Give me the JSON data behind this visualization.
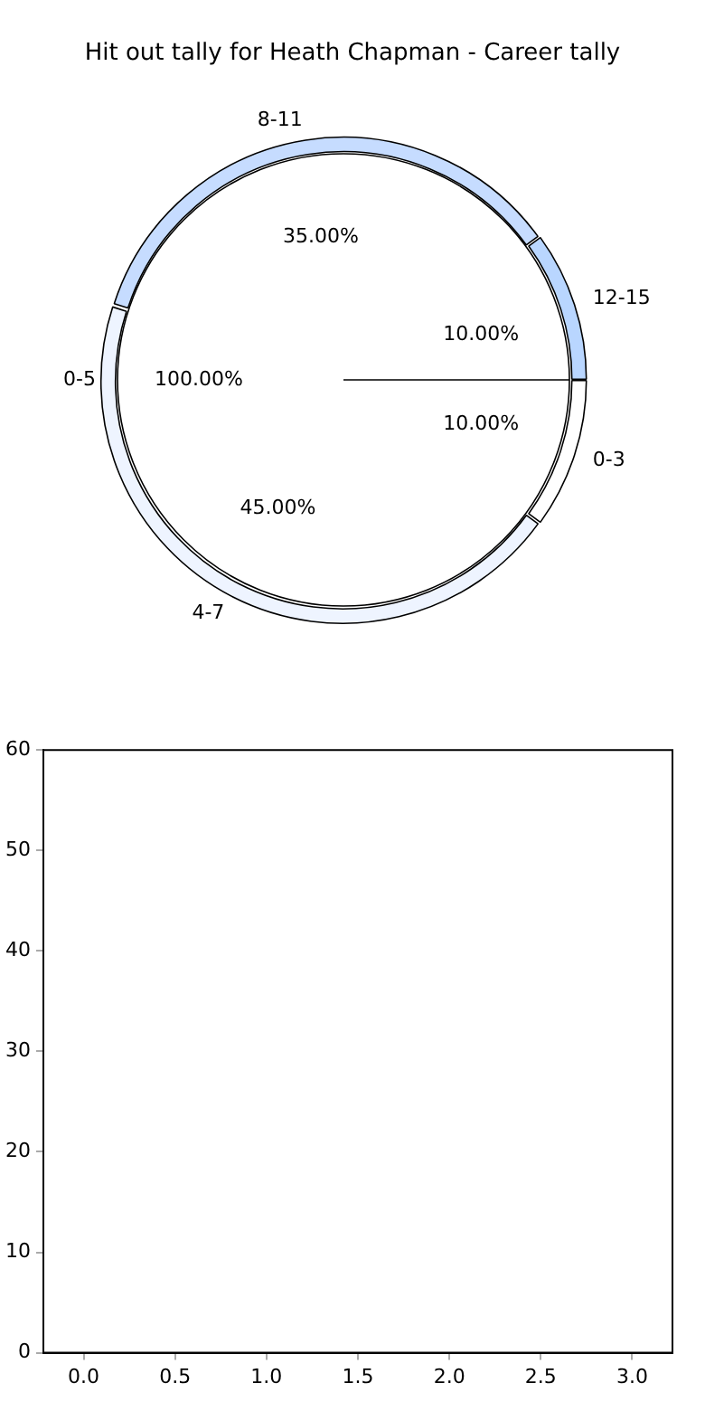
{
  "chart_data": [
    {
      "type": "pie",
      "title": "Hit out tally for Heath Chapman - Career tally",
      "categories": [
        "0-5"
      ],
      "values": [
        100
      ],
      "colors": [
        "#ffffff"
      ],
      "value_labels": [
        "100.00%"
      ]
    },
    {
      "type": "donut",
      "categories": [
        "0-3",
        "4-7",
        "8-11",
        "12-15"
      ],
      "values": [
        10,
        45,
        35,
        10
      ],
      "colors": [
        "#ffffff",
        "#eef4ff",
        "#c6dcff",
        "#b9d6ff"
      ],
      "value_labels": [
        "10.00%",
        "45.00%",
        "35.00%",
        "10.00%"
      ]
    },
    {
      "type": "scatter",
      "xlim": [
        -0.22,
        3.22
      ],
      "ylim": [
        0,
        60
      ],
      "xticks": [
        {
          "value": 0,
          "label": "0.0"
        },
        {
          "value": 0.5,
          "label": "0.5"
        },
        {
          "value": 1,
          "label": "1.0"
        },
        {
          "value": 1.5,
          "label": "1.5"
        },
        {
          "value": 2,
          "label": "2.0"
        },
        {
          "value": 2.5,
          "label": "2.5"
        },
        {
          "value": 3,
          "label": "3.0"
        }
      ],
      "yticks": [
        0,
        10,
        20,
        30,
        40,
        50,
        60
      ],
      "grid": false
    }
  ]
}
